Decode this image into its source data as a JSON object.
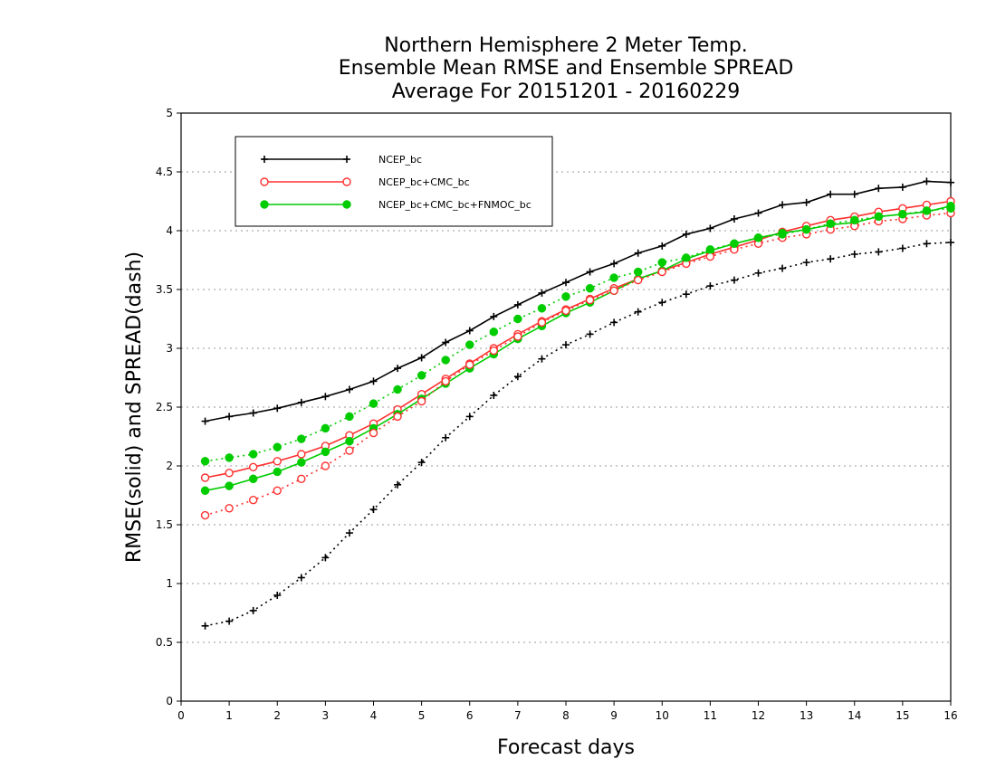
{
  "title_lines": [
    "Northern Hemisphere 2 Meter Temp.",
    "Ensemble Mean RMSE and Ensemble SPREAD",
    "Average For 20151201 - 20160229"
  ],
  "chart_data": {
    "type": "line",
    "title": "Northern Hemisphere 2 Meter Temp. Ensemble Mean RMSE and Ensemble SPREAD Average For 20151201 - 20160229",
    "xlabel": "Forecast days",
    "ylabel": "RMSE(solid) and SPREAD(dash)",
    "xlim": [
      0,
      16
    ],
    "ylim": [
      0,
      5
    ],
    "xticks": [
      "0",
      "1",
      "2",
      "3",
      "4",
      "5",
      "6",
      "7",
      "8",
      "9",
      "10",
      "11",
      "12",
      "13",
      "14",
      "15",
      "16"
    ],
    "yticks": [
      "0",
      "0.5",
      "1",
      "1.5",
      "2",
      "2.5",
      "3",
      "3.5",
      "4",
      "4.5",
      "5"
    ],
    "grid": true,
    "legend_position": "top-left",
    "x": [
      0.5,
      1,
      1.5,
      2,
      2.5,
      3,
      3.5,
      4,
      4.5,
      5,
      5.5,
      6,
      6.5,
      7,
      7.5,
      8,
      8.5,
      9,
      9.5,
      10,
      10.5,
      11,
      11.5,
      12,
      12.5,
      13,
      13.5,
      14,
      14.5,
      15,
      15.5,
      16
    ],
    "series": [
      {
        "name": "NCEP_bc",
        "style": "solid",
        "color": "#000000",
        "marker": "plus",
        "values": [
          2.38,
          2.42,
          2.45,
          2.49,
          2.54,
          2.59,
          2.65,
          2.72,
          2.83,
          2.92,
          3.05,
          3.15,
          3.27,
          3.37,
          3.47,
          3.56,
          3.65,
          3.72,
          3.81,
          3.87,
          3.97,
          4.02,
          4.1,
          4.15,
          4.22,
          4.24,
          4.31,
          4.31,
          4.36,
          4.37,
          4.42,
          4.41
        ]
      },
      {
        "name": "NCEP_bc+CMC_bc",
        "style": "solid",
        "color": "#ff3030",
        "marker": "open-circle",
        "values": [
          1.9,
          1.94,
          1.99,
          2.04,
          2.1,
          2.17,
          2.26,
          2.36,
          2.48,
          2.61,
          2.74,
          2.87,
          3.0,
          3.12,
          3.23,
          3.33,
          3.42,
          3.51,
          3.59,
          3.66,
          3.73,
          3.8,
          3.86,
          3.92,
          3.99,
          4.04,
          4.09,
          4.12,
          4.16,
          4.19,
          4.22,
          4.25
        ]
      },
      {
        "name": "NCEP_bc+CMC_bc+FNMOC_bc",
        "style": "solid",
        "color": "#00cc00",
        "marker": "filled-circle",
        "values": [
          1.79,
          1.83,
          1.89,
          1.95,
          2.03,
          2.12,
          2.21,
          2.32,
          2.44,
          2.57,
          2.7,
          2.83,
          2.95,
          3.08,
          3.19,
          3.3,
          3.39,
          3.49,
          3.59,
          3.66,
          3.76,
          3.83,
          3.89,
          3.94,
          3.98,
          4.01,
          4.05,
          4.07,
          4.12,
          4.14,
          4.16,
          4.21
        ]
      },
      {
        "series_ref": "NCEP_bc",
        "style": "dotted",
        "color": "#000000",
        "marker": "plus",
        "values": [
          0.64,
          0.68,
          0.77,
          0.9,
          1.05,
          1.22,
          1.43,
          1.63,
          1.84,
          2.03,
          2.24,
          2.42,
          2.6,
          2.76,
          2.91,
          3.03,
          3.12,
          3.22,
          3.31,
          3.39,
          3.46,
          3.53,
          3.58,
          3.64,
          3.68,
          3.73,
          3.76,
          3.8,
          3.82,
          3.85,
          3.89,
          3.9
        ]
      },
      {
        "series_ref": "NCEP_bc+CMC_bc",
        "style": "dotted",
        "color": "#ff3030",
        "marker": "open-circle",
        "values": [
          1.58,
          1.64,
          1.71,
          1.79,
          1.89,
          2.0,
          2.13,
          2.28,
          2.42,
          2.55,
          2.72,
          2.86,
          2.98,
          3.1,
          3.22,
          3.32,
          3.41,
          3.49,
          3.58,
          3.65,
          3.72,
          3.78,
          3.84,
          3.89,
          3.94,
          3.97,
          4.01,
          4.04,
          4.08,
          4.1,
          4.13,
          4.15
        ]
      },
      {
        "series_ref": "NCEP_bc+CMC_bc+FNMOC_bc",
        "style": "dotted",
        "color": "#00cc00",
        "marker": "filled-circle",
        "values": [
          2.04,
          2.07,
          2.1,
          2.16,
          2.23,
          2.32,
          2.42,
          2.53,
          2.65,
          2.77,
          2.9,
          3.03,
          3.14,
          3.25,
          3.34,
          3.44,
          3.51,
          3.6,
          3.65,
          3.73,
          3.77,
          3.84,
          3.89,
          3.94,
          3.97,
          4.01,
          4.06,
          4.09,
          4.12,
          4.14,
          4.17,
          4.19
        ]
      }
    ]
  }
}
